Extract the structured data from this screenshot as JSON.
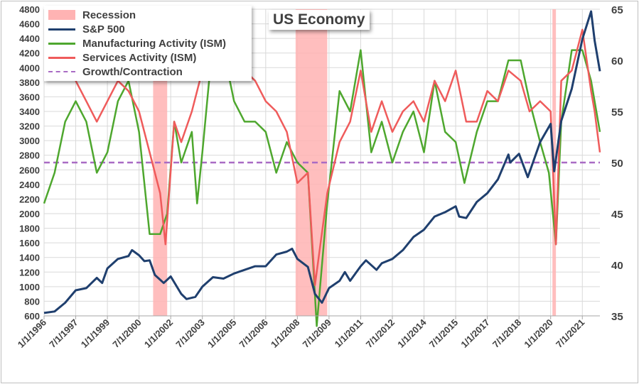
{
  "chart_data": {
    "type": "line",
    "title": "US Economy",
    "x_start": "1996-01",
    "x_end": "2022-05",
    "x_tick_labels": [
      "1/1/1996",
      "7/1/1997",
      "1/1/1999",
      "7/1/2000",
      "1/1/2002",
      "7/1/2003",
      "1/1/2005",
      "7/1/2006",
      "1/1/2008",
      "7/1/2009",
      "1/1/2011",
      "7/1/2012",
      "1/1/2014",
      "7/1/2015",
      "1/1/2017",
      "7/1/2018",
      "1/1/2020",
      "7/1/2021"
    ],
    "y_left": {
      "min": 600,
      "max": 4800,
      "step": 200
    },
    "y_right": {
      "min": 35,
      "max": 65,
      "ticks": [
        35,
        40,
        45,
        50,
        55,
        60,
        65
      ]
    },
    "grid": true,
    "legend_position": "top-left",
    "growth_contraction_level": 50,
    "recessions": [
      {
        "start": "2001-03",
        "end": "2001-11"
      },
      {
        "start": "2007-12",
        "end": "2009-06"
      },
      {
        "start": "2020-02",
        "end": "2020-04"
      }
    ],
    "series": [
      {
        "name": "S&P 500",
        "axis": "left",
        "color": "#1f3f6e",
        "x": [
          "1996-01",
          "1996-07",
          "1997-01",
          "1997-07",
          "1998-01",
          "1998-07",
          "1998-10",
          "1999-01",
          "1999-07",
          "2000-01",
          "2000-03",
          "2000-07",
          "2000-10",
          "2001-01",
          "2001-04",
          "2001-09",
          "2002-01",
          "2002-07",
          "2002-10",
          "2003-03",
          "2003-07",
          "2004-01",
          "2004-07",
          "2005-01",
          "2005-07",
          "2006-01",
          "2006-07",
          "2007-01",
          "2007-07",
          "2007-10",
          "2008-01",
          "2008-07",
          "2008-11",
          "2009-03",
          "2009-07",
          "2010-01",
          "2010-04",
          "2010-07",
          "2011-01",
          "2011-04",
          "2011-10",
          "2012-01",
          "2012-07",
          "2013-01",
          "2013-07",
          "2014-01",
          "2014-07",
          "2015-01",
          "2015-07",
          "2015-09",
          "2016-01",
          "2016-07",
          "2017-01",
          "2017-07",
          "2018-01",
          "2018-02",
          "2018-07",
          "2018-12",
          "2019-07",
          "2020-01",
          "2020-03",
          "2020-07",
          "2021-01",
          "2021-07",
          "2021-12",
          "2022-02",
          "2022-05"
        ],
        "values": [
          640,
          660,
          780,
          950,
          980,
          1120,
          1050,
          1250,
          1380,
          1420,
          1500,
          1430,
          1350,
          1360,
          1160,
          1050,
          1140,
          900,
          830,
          860,
          1000,
          1130,
          1110,
          1180,
          1230,
          1280,
          1280,
          1440,
          1480,
          1520,
          1380,
          1270,
          900,
          780,
          980,
          1080,
          1200,
          1080,
          1280,
          1360,
          1230,
          1320,
          1380,
          1500,
          1680,
          1780,
          1960,
          2020,
          2100,
          1960,
          1940,
          2160,
          2280,
          2470,
          2810,
          2700,
          2820,
          2500,
          2980,
          3230,
          2580,
          3270,
          3710,
          4390,
          4770,
          4370,
          3950
        ]
      },
      {
        "name": "Manufacturing Activity (ISM)",
        "axis": "right",
        "color": "#4ea72e",
        "x": [
          "1996-01",
          "1996-07",
          "1997-01",
          "1997-07",
          "1998-01",
          "1998-07",
          "1999-01",
          "1999-07",
          "2000-01",
          "2000-07",
          "2001-01",
          "2001-07",
          "2001-11",
          "2002-03",
          "2002-07",
          "2003-01",
          "2003-04",
          "2003-07",
          "2004-01",
          "2004-07",
          "2005-01",
          "2005-07",
          "2006-01",
          "2006-07",
          "2007-01",
          "2007-07",
          "2008-01",
          "2008-07",
          "2008-12",
          "2009-06",
          "2010-01",
          "2010-07",
          "2011-01",
          "2011-07",
          "2012-01",
          "2012-07",
          "2013-01",
          "2013-07",
          "2014-01",
          "2014-07",
          "2015-01",
          "2015-07",
          "2015-12",
          "2016-07",
          "2017-01",
          "2017-07",
          "2018-01",
          "2018-08",
          "2019-01",
          "2019-07",
          "2019-12",
          "2020-04",
          "2020-07",
          "2021-01",
          "2021-07",
          "2021-12",
          "2022-05"
        ],
        "values": [
          46,
          49,
          54,
          56,
          54,
          49,
          51,
          56,
          58,
          53,
          43,
          43,
          45,
          54,
          50,
          53,
          46,
          51,
          62,
          61,
          56,
          54,
          54,
          53,
          49,
          52,
          50,
          49,
          34,
          46,
          57,
          55,
          61,
          51,
          54,
          50,
          53,
          55,
          51,
          58,
          53,
          52,
          48,
          53,
          56,
          56,
          60,
          60,
          56,
          52,
          49,
          42,
          54,
          61,
          61,
          58,
          53
        ]
      },
      {
        "name": "Services Activity (ISM)",
        "axis": "right",
        "color": "#ef5b5b",
        "x": [
          "1997-07",
          "1998-01",
          "1998-07",
          "1999-01",
          "1999-07",
          "2000-01",
          "2000-07",
          "2001-01",
          "2001-07",
          "2001-10",
          "2002-03",
          "2002-07",
          "2003-01",
          "2003-07",
          "2004-01",
          "2004-07",
          "2005-01",
          "2005-07",
          "2006-01",
          "2006-07",
          "2007-01",
          "2007-07",
          "2008-01",
          "2008-07",
          "2008-11",
          "2009-06",
          "2010-01",
          "2010-07",
          "2011-01",
          "2011-07",
          "2012-01",
          "2012-07",
          "2013-01",
          "2013-07",
          "2014-01",
          "2014-07",
          "2015-01",
          "2015-07",
          "2016-01",
          "2016-07",
          "2017-01",
          "2017-07",
          "2018-01",
          "2018-08",
          "2019-01",
          "2019-07",
          "2020-01",
          "2020-04",
          "2020-07",
          "2021-01",
          "2021-07",
          "2021-12",
          "2022-02",
          "2022-05"
        ],
        "values": [
          58,
          56,
          54,
          56,
          58,
          57,
          55,
          51,
          47,
          42,
          54,
          52,
          55,
          59,
          60,
          59,
          60,
          59,
          58,
          56,
          55,
          53,
          48,
          49,
          38,
          47,
          52,
          54,
          59,
          53,
          56,
          53,
          55,
          56,
          54,
          58,
          56,
          59,
          54,
          54,
          57,
          56,
          59,
          58,
          55,
          56,
          55,
          42,
          58,
          59,
          63,
          57,
          55,
          51
        ]
      }
    ]
  },
  "legend": {
    "recession": "Recession",
    "sp500": "S&P 500",
    "manufacturing": "Manufacturing Activity (ISM)",
    "services": "Services Activity (ISM)",
    "growth": "Growth/Contraction"
  },
  "colors": {
    "recession": "#ffb3b3",
    "sp500": "#1f3f6e",
    "manufacturing": "#4ea72e",
    "services": "#ef5b5b",
    "growth": "#a96bc4",
    "grid": "#d9d9d9"
  }
}
